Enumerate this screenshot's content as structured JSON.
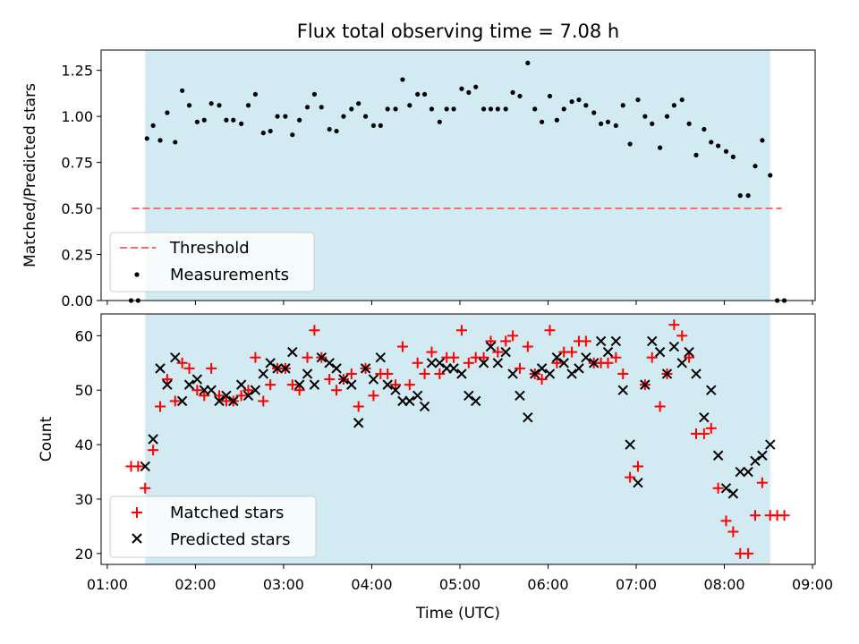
{
  "chart_data": [
    {
      "type": "scatter",
      "title": "Flux total observing time = 7.08 h",
      "xlabel": "",
      "ylabel": "Matched/Predicted stars",
      "ylim": [
        0,
        1.36
      ],
      "yticks": [
        0.0,
        0.25,
        0.5,
        0.75,
        1.0,
        1.25
      ],
      "ytick_labels": [
        "0.00",
        "0.25",
        "0.50",
        "0.75",
        "1.00",
        "1.25"
      ],
      "shaded_span_hours": [
        1.43,
        8.52
      ],
      "shaded_color": "#add8e6",
      "threshold": {
        "name": "Threshold",
        "value": 0.5,
        "x_range_hours": [
          1.28,
          8.65
        ],
        "color": "#ff6a6a"
      },
      "legend": {
        "location": "lower-left",
        "entries": [
          "Threshold",
          "Measurements"
        ]
      },
      "series": [
        {
          "name": "Measurements",
          "marker": "point",
          "color": "#000000",
          "x_hours": [
            1.27,
            1.35,
            1.45,
            1.52,
            1.6,
            1.68,
            1.77,
            1.85,
            1.93,
            2.02,
            2.1,
            2.18,
            2.27,
            2.35,
            2.43,
            2.52,
            2.6,
            2.68,
            2.77,
            2.85,
            2.93,
            3.02,
            3.1,
            3.18,
            3.27,
            3.35,
            3.43,
            3.52,
            3.6,
            3.68,
            3.77,
            3.85,
            3.93,
            4.02,
            4.1,
            4.18,
            4.27,
            4.35,
            4.43,
            4.52,
            4.6,
            4.68,
            4.77,
            4.85,
            4.93,
            5.02,
            5.1,
            5.18,
            5.27,
            5.35,
            5.43,
            5.52,
            5.6,
            5.68,
            5.77,
            5.85,
            5.93,
            6.02,
            6.1,
            6.18,
            6.27,
            6.35,
            6.43,
            6.52,
            6.6,
            6.68,
            6.77,
            6.85,
            6.93,
            7.02,
            7.1,
            7.18,
            7.27,
            7.35,
            7.43,
            7.52,
            7.6,
            7.68,
            7.77,
            7.85,
            7.93,
            8.02,
            8.1,
            8.18,
            8.27,
            8.35,
            8.43,
            8.52,
            8.6,
            8.68
          ],
          "y": [
            0,
            0,
            0.88,
            0.95,
            0.87,
            1.02,
            0.86,
            1.14,
            1.06,
            0.97,
            0.98,
            1.07,
            1.06,
            0.98,
            0.98,
            0.96,
            1.06,
            1.12,
            0.91,
            0.92,
            1.0,
            1.0,
            0.9,
            0.98,
            1.05,
            1.12,
            1.05,
            0.93,
            0.92,
            1.0,
            1.04,
            1.07,
            1.0,
            0.95,
            0.95,
            1.04,
            1.04,
            1.2,
            1.06,
            1.12,
            1.12,
            1.04,
            0.97,
            1.04,
            1.04,
            1.15,
            1.13,
            1.16,
            1.04,
            1.04,
            1.04,
            1.04,
            1.13,
            1.11,
            1.29,
            1.04,
            0.97,
            1.11,
            0.98,
            1.04,
            1.08,
            1.09,
            1.06,
            1.02,
            0.96,
            0.97,
            0.95,
            1.06,
            0.85,
            1.09,
            1.0,
            0.96,
            0.83,
            1.0,
            1.06,
            1.09,
            0.96,
            0.79,
            0.93,
            0.86,
            0.84,
            0.81,
            0.78,
            0.57,
            0.57,
            0.73,
            0.87,
            0.68,
            0,
            0
          ]
        }
      ]
    },
    {
      "type": "scatter",
      "xlabel": "Time (UTC)",
      "ylabel": "Count",
      "ylim": [
        18,
        64
      ],
      "yticks": [
        20,
        30,
        40,
        50,
        60
      ],
      "ytick_labels": [
        "20",
        "30",
        "40",
        "50",
        "60"
      ],
      "xlim_hours": [
        0.93,
        9.03
      ],
      "xticks_hours": [
        1,
        2,
        3,
        4,
        5,
        6,
        7,
        8,
        9
      ],
      "xtick_labels": [
        "01:00",
        "02:00",
        "03:00",
        "04:00",
        "05:00",
        "06:00",
        "07:00",
        "08:00",
        "09:00"
      ],
      "shaded_span_hours": [
        1.43,
        8.52
      ],
      "shaded_color": "#add8e6",
      "legend": {
        "location": "lower-left",
        "entries": [
          "Matched stars",
          "Predicted stars"
        ]
      },
      "series": [
        {
          "name": "Matched stars",
          "marker": "plus",
          "color": "#ff0000",
          "x_hours": [
            1.27,
            1.35,
            1.43,
            1.52,
            1.6,
            1.68,
            1.77,
            1.85,
            1.93,
            2.02,
            2.1,
            2.18,
            2.27,
            2.35,
            2.43,
            2.52,
            2.6,
            2.68,
            2.77,
            2.85,
            2.93,
            3.02,
            3.1,
            3.18,
            3.27,
            3.35,
            3.43,
            3.52,
            3.6,
            3.68,
            3.77,
            3.85,
            3.93,
            4.02,
            4.1,
            4.18,
            4.27,
            4.35,
            4.43,
            4.52,
            4.6,
            4.68,
            4.77,
            4.85,
            4.93,
            5.02,
            5.1,
            5.18,
            5.27,
            5.35,
            5.43,
            5.52,
            5.6,
            5.68,
            5.77,
            5.85,
            5.93,
            6.02,
            6.1,
            6.18,
            6.27,
            6.35,
            6.43,
            6.52,
            6.6,
            6.68,
            6.77,
            6.85,
            6.93,
            7.02,
            7.1,
            7.18,
            7.27,
            7.35,
            7.43,
            7.52,
            7.6,
            7.68,
            7.77,
            7.85,
            7.93,
            8.02,
            8.1,
            8.18,
            8.27,
            8.35,
            8.43,
            8.52,
            8.6,
            8.68
          ],
          "y": [
            36,
            36,
            32,
            39,
            47,
            52,
            48,
            55,
            54,
            50,
            49,
            54,
            49,
            48,
            48,
            49,
            50,
            56,
            48,
            51,
            54,
            54,
            51,
            50,
            56,
            61,
            56,
            52,
            50,
            52,
            53,
            47,
            54,
            49,
            53,
            53,
            51,
            58,
            51,
            55,
            53,
            57,
            53,
            56,
            56,
            61,
            55,
            56,
            56,
            59,
            57,
            59,
            60,
            54,
            58,
            53,
            52,
            61,
            55,
            57,
            57,
            59,
            59,
            55,
            55,
            55,
            56,
            53,
            34,
            36,
            51,
            56,
            47,
            53,
            62,
            60,
            56,
            42,
            42,
            43,
            32,
            26,
            24,
            20,
            20,
            27,
            33,
            27,
            27,
            27
          ]
        },
        {
          "name": "Predicted stars",
          "marker": "x",
          "color": "#000000",
          "x_hours": [
            1.43,
            1.52,
            1.6,
            1.68,
            1.77,
            1.85,
            1.93,
            2.02,
            2.1,
            2.18,
            2.27,
            2.35,
            2.43,
            2.52,
            2.6,
            2.68,
            2.77,
            2.85,
            2.93,
            3.02,
            3.1,
            3.18,
            3.27,
            3.35,
            3.43,
            3.52,
            3.6,
            3.68,
            3.77,
            3.85,
            3.93,
            4.02,
            4.1,
            4.18,
            4.27,
            4.35,
            4.43,
            4.52,
            4.6,
            4.68,
            4.77,
            4.85,
            4.93,
            5.02,
            5.1,
            5.18,
            5.27,
            5.35,
            5.43,
            5.52,
            5.6,
            5.68,
            5.77,
            5.85,
            5.93,
            6.02,
            6.1,
            6.18,
            6.27,
            6.35,
            6.43,
            6.52,
            6.6,
            6.68,
            6.77,
            6.85,
            6.93,
            7.02,
            7.1,
            7.18,
            7.27,
            7.35,
            7.43,
            7.52,
            7.6,
            7.68,
            7.77,
            7.85,
            7.93,
            8.02,
            8.1,
            8.18,
            8.27,
            8.35,
            8.43,
            8.52
          ],
          "y": [
            36,
            41,
            54,
            51,
            56,
            48,
            51,
            52,
            50,
            50,
            48,
            49,
            48,
            51,
            49,
            50,
            53,
            55,
            54,
            54,
            57,
            51,
            53,
            51,
            56,
            55,
            54,
            52,
            51,
            44,
            54,
            52,
            56,
            51,
            50,
            48,
            48,
            49,
            47,
            55,
            55,
            54,
            54,
            53,
            49,
            48,
            55,
            58,
            55,
            57,
            53,
            49,
            45,
            53,
            54,
            53,
            56,
            55,
            53,
            54,
            56,
            55,
            59,
            57,
            59,
            50,
            40,
            33,
            51,
            59,
            57,
            53,
            58,
            55,
            57,
            53,
            45,
            50,
            38,
            32,
            31,
            35,
            35,
            37,
            38,
            40
          ]
        }
      ]
    }
  ]
}
